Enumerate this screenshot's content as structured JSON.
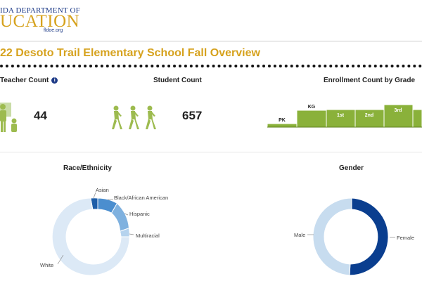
{
  "logo": {
    "line1": "IDA DEPARTMENT OF",
    "line2": "UCATION",
    "line3": "fldoe.org"
  },
  "page_title": "22 Desoto Trail Elementary School Fall Overview",
  "teacher": {
    "label": "Teacher Count",
    "info_icon": "i",
    "value": "44"
  },
  "student": {
    "label": "Student Count",
    "value": "657"
  },
  "enrollment": {
    "label": "Enrollment Count by Grade",
    "grades": [
      "PK",
      "KG",
      "1st",
      "2nd",
      "3rd"
    ]
  },
  "race": {
    "label": "Race/Ethnicity",
    "labels": [
      "Asian",
      "Black/African American",
      "Hispanic",
      "Multiracial",
      "White"
    ]
  },
  "gender": {
    "label": "Gender",
    "labels": [
      "Male",
      "Female"
    ]
  },
  "colors": {
    "title_gold": "#d6a21e",
    "logo_blue": "#1f3c88",
    "bar_green": "#8ab13a",
    "icon_green": "#9dbb4f",
    "female_blue": "#0a3e8f",
    "male_blue": "#c7dcef"
  }
}
